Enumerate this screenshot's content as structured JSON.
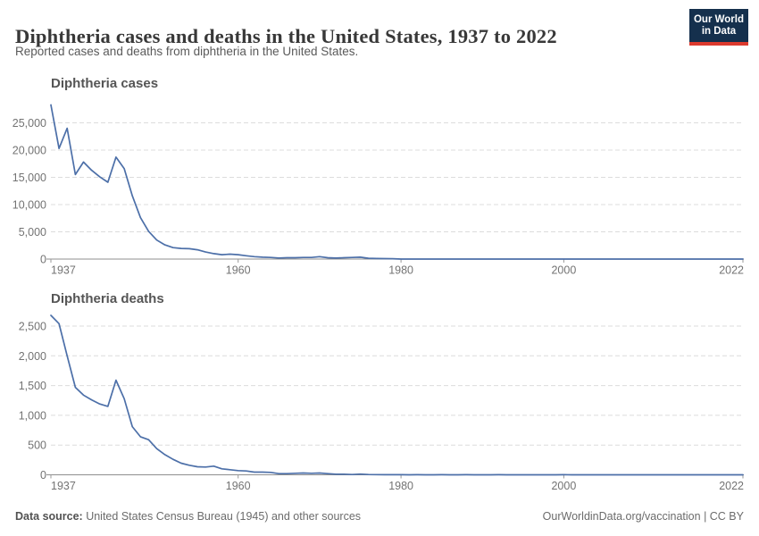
{
  "header": {
    "title": "Diphtheria cases and deaths in the United States, 1937 to 2022",
    "subtitle": "Reported cases and deaths from diphtheria in the United States.",
    "logo": {
      "line1": "Our World",
      "line2": "in Data",
      "bg_color": "#15304d",
      "accent_color": "#dc3a2e"
    }
  },
  "footer": {
    "source_label": "Data source:",
    "source_text": " United States Census Bureau (1945) and other sources",
    "link_text": "OurWorldinData.org/vaccination | CC BY"
  },
  "colors": {
    "line": "#4c6fa8",
    "grid": "#dcdcdc",
    "axis": "#8f8f8f",
    "tick_label": "#737373",
    "chart_heading": "#555555"
  },
  "chart_data": [
    {
      "type": "line",
      "title": "Diphtheria cases",
      "xlabel": "",
      "ylabel": "",
      "grid": true,
      "legend": "none",
      "ylim": [
        0,
        29000
      ],
      "yticks": [
        0,
        5000,
        10000,
        15000,
        20000,
        25000
      ],
      "xticks": [
        1937,
        1960,
        1980,
        2000,
        2022
      ],
      "years": [
        1937,
        1938,
        1939,
        1940,
        1941,
        1942,
        1943,
        1944,
        1945,
        1946,
        1947,
        1948,
        1949,
        1950,
        1951,
        1952,
        1953,
        1954,
        1955,
        1956,
        1957,
        1958,
        1959,
        1960,
        1961,
        1962,
        1963,
        1964,
        1965,
        1966,
        1967,
        1968,
        1969,
        1970,
        1971,
        1972,
        1973,
        1974,
        1975,
        1976,
        1977,
        1978,
        1979,
        1980,
        1981,
        1982,
        1983,
        1984,
        1985,
        1986,
        1987,
        1988,
        1989,
        1990,
        1991,
        1992,
        1993,
        1994,
        1995,
        1996,
        1997,
        1998,
        1999,
        2000,
        2001,
        2002,
        2003,
        2004,
        2005,
        2006,
        2007,
        2008,
        2009,
        2010,
        2011,
        2012,
        2013,
        2014,
        2015,
        2016,
        2017,
        2018,
        2019,
        2020,
        2021,
        2022
      ],
      "values": [
        28300,
        20300,
        24000,
        15500,
        17800,
        16300,
        15100,
        14100,
        18700,
        16600,
        11600,
        7600,
        5100,
        3500,
        2600,
        2100,
        1950,
        1900,
        1700,
        1300,
        1000,
        800,
        900,
        800,
        600,
        450,
        350,
        300,
        200,
        250,
        250,
        300,
        300,
        450,
        250,
        180,
        250,
        300,
        350,
        150,
        100,
        80,
        60,
        5,
        5,
        2,
        5,
        1,
        3,
        0,
        3,
        2,
        3,
        4,
        2,
        4,
        0,
        2,
        0,
        2,
        4,
        1,
        1,
        1,
        2,
        1,
        1,
        0,
        0,
        0,
        0,
        0,
        0,
        0,
        0,
        1,
        0,
        1,
        0,
        0,
        0,
        1,
        2,
        1,
        0,
        0
      ]
    },
    {
      "type": "line",
      "title": "Diphtheria deaths",
      "xlabel": "",
      "ylabel": "",
      "grid": true,
      "legend": "none",
      "ylim": [
        0,
        2900
      ],
      "yticks": [
        0,
        500,
        1000,
        1500,
        2000,
        2500
      ],
      "xticks": [
        1937,
        1960,
        1980,
        2000,
        2022
      ],
      "years": [
        1937,
        1938,
        1939,
        1940,
        1941,
        1942,
        1943,
        1944,
        1945,
        1946,
        1947,
        1948,
        1949,
        1950,
        1951,
        1952,
        1953,
        1954,
        1955,
        1956,
        1957,
        1958,
        1959,
        1960,
        1961,
        1962,
        1963,
        1964,
        1965,
        1966,
        1967,
        1968,
        1969,
        1970,
        1971,
        1972,
        1973,
        1974,
        1975,
        1976,
        1977,
        1978,
        1979,
        1980,
        1981,
        1982,
        1983,
        1984,
        1985,
        1986,
        1987,
        1988,
        1989,
        1990,
        1991,
        1992,
        1993,
        1994,
        1995,
        1996,
        1997,
        1998,
        1999,
        2000,
        2001,
        2002,
        2003,
        2004,
        2005,
        2006,
        2007,
        2008,
        2009,
        2010,
        2011,
        2012,
        2013,
        2014,
        2015,
        2016,
        2017,
        2018,
        2019,
        2020,
        2021,
        2022
      ],
      "values": [
        2680,
        2540,
        2000,
        1470,
        1340,
        1260,
        1190,
        1150,
        1590,
        1280,
        810,
        640,
        590,
        440,
        340,
        260,
        195,
        160,
        135,
        130,
        145,
        100,
        85,
        70,
        65,
        45,
        45,
        40,
        20,
        20,
        25,
        30,
        25,
        30,
        20,
        10,
        10,
        5,
        12,
        5,
        3,
        2,
        1,
        1,
        0,
        1,
        0,
        0,
        1,
        0,
        0,
        1,
        0,
        0,
        0,
        1,
        0,
        0,
        0,
        0,
        0,
        0,
        0,
        1,
        0,
        0,
        0,
        0,
        0,
        0,
        0,
        0,
        0,
        0,
        0,
        0,
        0,
        0,
        0,
        0,
        0,
        0,
        0,
        0,
        0,
        0
      ]
    }
  ]
}
